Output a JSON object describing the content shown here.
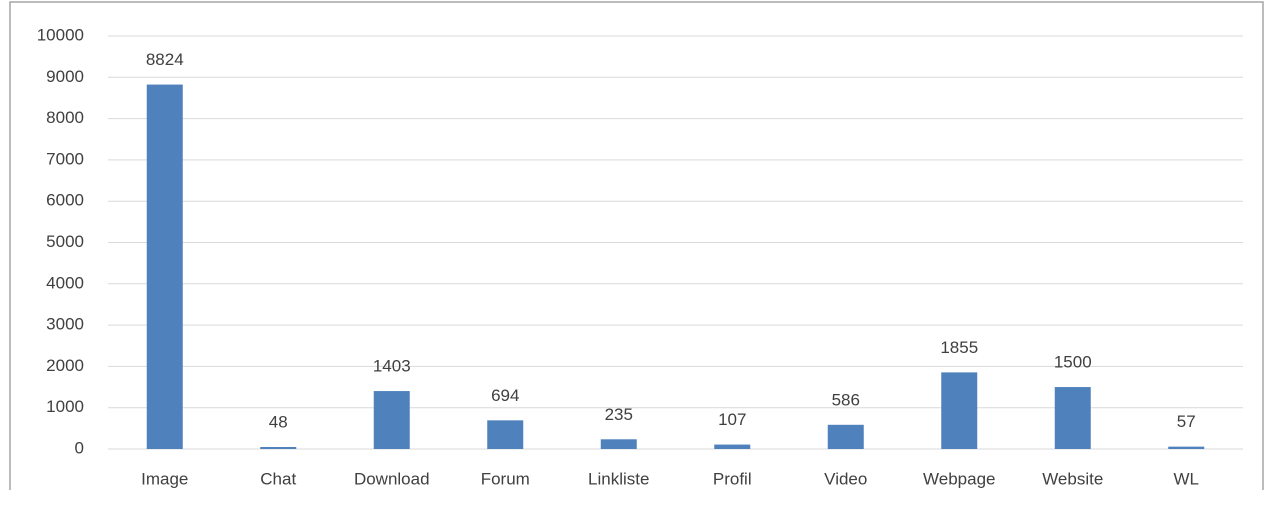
{
  "chart_data": {
    "type": "bar",
    "categories": [
      "Image",
      "Chat",
      "Download",
      "Forum",
      "Linkliste",
      "Profil",
      "Video",
      "Webpage",
      "Website",
      "WL"
    ],
    "values": [
      8824,
      48,
      1403,
      694,
      235,
      107,
      586,
      1855,
      1500,
      57
    ],
    "color": "#4f81bd",
    "ylim": [
      0,
      10000
    ],
    "yticks": [
      0,
      1000,
      2000,
      3000,
      4000,
      5000,
      6000,
      7000,
      8000,
      9000,
      10000
    ],
    "grid": true
  }
}
